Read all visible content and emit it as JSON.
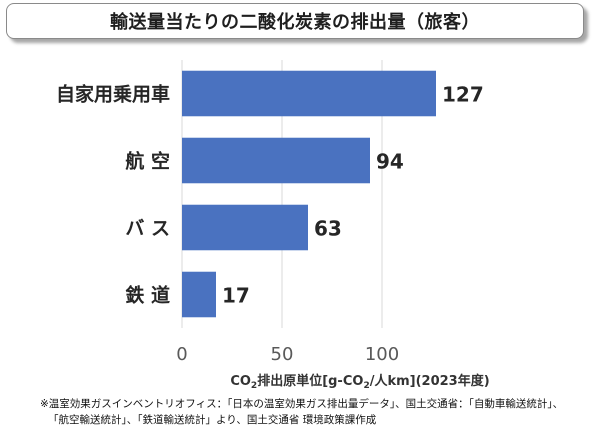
{
  "title": "輸送量当たりの二酸化炭素の排出量（旅客）",
  "chart_data": {
    "type": "bar",
    "orientation": "horizontal",
    "categories": [
      "自家用乗用車",
      "航 空",
      "バ ス",
      "鉄 道"
    ],
    "values": [
      127,
      94,
      63,
      17
    ],
    "xlim": [
      0,
      125
    ],
    "xticks": [
      0,
      50,
      100
    ],
    "xlabel": {
      "prefix": "CO",
      "sub1": "2",
      "mid": "排出原単位[g-CO",
      "sub2": "2",
      "suffix": "/人km](2023年度)"
    },
    "bar_color": "#4a72c0",
    "grid": "vertical"
  },
  "source_note": {
    "line1": "※温室効果ガスインベントリオフィス：「日本の温室効果ガス排出量データ」、国土交通省：「自動車輸送統計」、",
    "line2": "「航空輸送統計」、「鉄道輸送統計」より、国土交通省 環境政策課作成"
  }
}
